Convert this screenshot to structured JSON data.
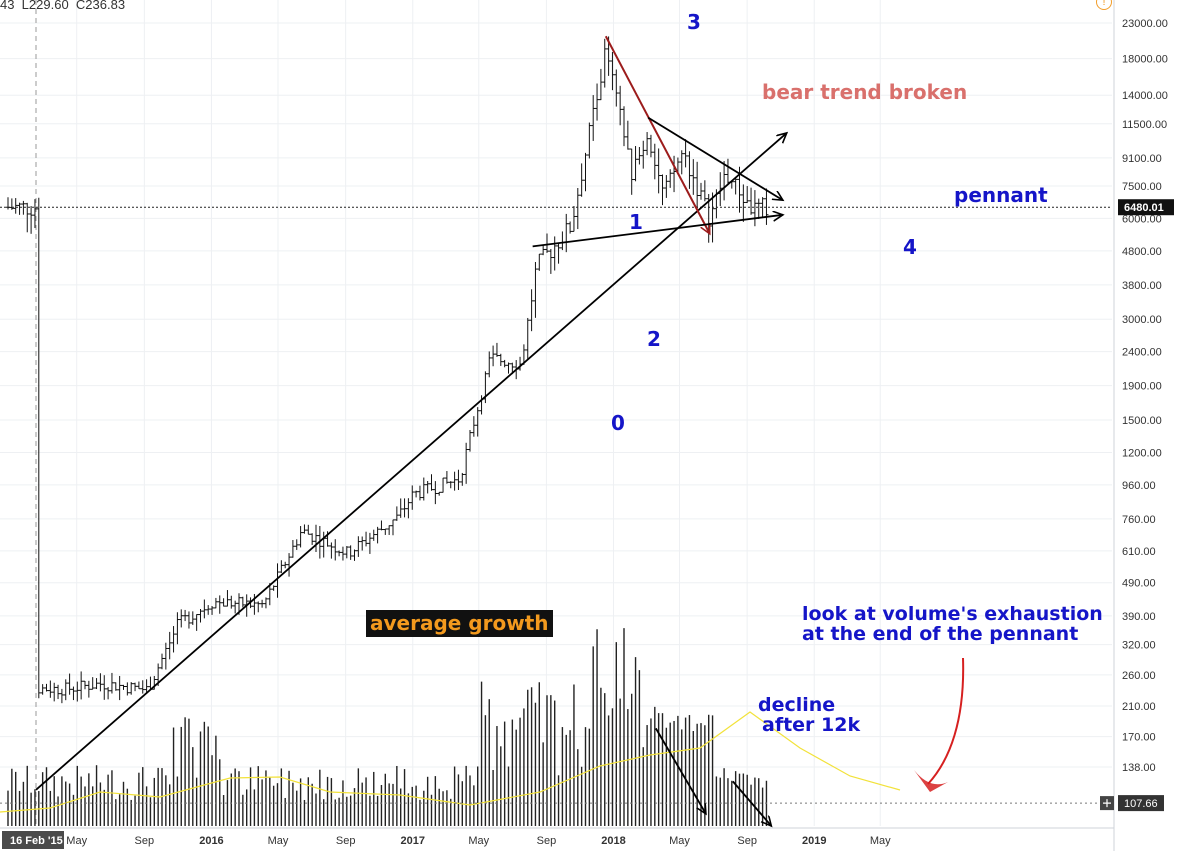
{
  "header": {
    "ohlc_text": "43  L229.60  C236.83"
  },
  "colors": {
    "price_bar": "#111111",
    "volume_bar": "#222222",
    "volume_ma": "#f2e23a",
    "bear_arrow": "#9c1c1c",
    "curved_arrow": "#d62020",
    "label_blue": "#1515c8"
  },
  "annotations": {
    "wave_0": "0",
    "wave_1": "1",
    "wave_2": "2",
    "wave_3": "3",
    "wave_4": "4",
    "bear": "bear trend broken",
    "pennant": "pennant",
    "growth": "average growth",
    "volume_line1": "look at volume's exhaustion",
    "volume_line2": "at the end of the pennant",
    "decline_line1": "decline",
    "decline_line2": "after 12k"
  },
  "chart_data": {
    "type": "ohlc",
    "scale": "log",
    "price_axis_ticks": [
      "23000.00",
      "18000.00",
      "14000.00",
      "11500.00",
      "9100.00",
      "7500.00",
      "6000.00",
      "4800.00",
      "3800.00",
      "3000.00",
      "2400.00",
      "1900.00",
      "1500.00",
      "1200.00",
      "960.00",
      "760.00",
      "610.00",
      "490.00",
      "390.00",
      "320.00",
      "260.00",
      "210.00",
      "170.00",
      "138.00"
    ],
    "time_axis_labels": [
      "16 Feb '15",
      "May",
      "Sep",
      "2016",
      "May",
      "Sep",
      "2017",
      "May",
      "Sep",
      "2018",
      "May",
      "Sep",
      "2019",
      "May"
    ],
    "current_price_label": "6480.01",
    "current_price": 6480.01,
    "volume_ma_label": "107.66",
    "volume_ma": 107.66,
    "approx_close_path": [
      {
        "date": "2015-02-16",
        "close": 236.83
      },
      {
        "date": "2015-04-13",
        "close": 236
      },
      {
        "date": "2015-06-15",
        "close": 245
      },
      {
        "date": "2015-09-07",
        "close": 235
      },
      {
        "date": "2015-11-02",
        "close": 370
      },
      {
        "date": "2016-01-04",
        "close": 430
      },
      {
        "date": "2016-04-04",
        "close": 420
      },
      {
        "date": "2016-06-13",
        "close": 700
      },
      {
        "date": "2016-09-05",
        "close": 600
      },
      {
        "date": "2016-12-05",
        "close": 770
      },
      {
        "date": "2017-01-02",
        "close": 900
      },
      {
        "date": "2017-03-27",
        "close": 1000
      },
      {
        "date": "2017-05-22",
        "close": 2300
      },
      {
        "date": "2017-07-17",
        "close": 2200
      },
      {
        "date": "2017-08-14",
        "close": 4300
      },
      {
        "date": "2017-10-16",
        "close": 5700
      },
      {
        "date": "2017-12-18",
        "close": 19000
      },
      {
        "date": "2018-02-05",
        "close": 8000
      },
      {
        "date": "2018-03-05",
        "close": 11000
      },
      {
        "date": "2018-04-02",
        "close": 7000
      },
      {
        "date": "2018-05-07",
        "close": 9500
      },
      {
        "date": "2018-06-25",
        "close": 6000
      },
      {
        "date": "2018-07-23",
        "close": 8200
      },
      {
        "date": "2018-09-10",
        "close": 6400
      },
      {
        "date": "2018-10-08",
        "close": 6480.01
      }
    ],
    "trendlines": [
      {
        "name": "average growth support",
        "from": {
          "date": "2015-02-16",
          "price": 118
        },
        "to": {
          "date": "2018-11-12",
          "price": 10800
        }
      },
      {
        "name": "bear trend",
        "from": {
          "date": "2017-12-18",
          "price": 21000
        },
        "to": {
          "date": "2018-06-25",
          "price": 5400
        }
      },
      {
        "name": "pennant upper",
        "from": {
          "date": "2018-03-05",
          "price": 12000
        },
        "to": {
          "date": "2018-11-05",
          "price": 6800
        }
      },
      {
        "name": "pennant lower",
        "from": {
          "date": "2017-08-07",
          "price": 4950
        },
        "to": {
          "date": "2018-11-05",
          "price": 6150
        }
      },
      {
        "name": "volume decline 1",
        "from": {
          "date": "2018-03-19",
          "volume": 180
        },
        "to": {
          "date": "2018-06-18",
          "volume": 100
        }
      },
      {
        "name": "volume decline 2",
        "from": {
          "date": "2018-08-06",
          "volume": 125
        },
        "to": {
          "date": "2018-10-15",
          "volume": 92
        }
      }
    ]
  }
}
